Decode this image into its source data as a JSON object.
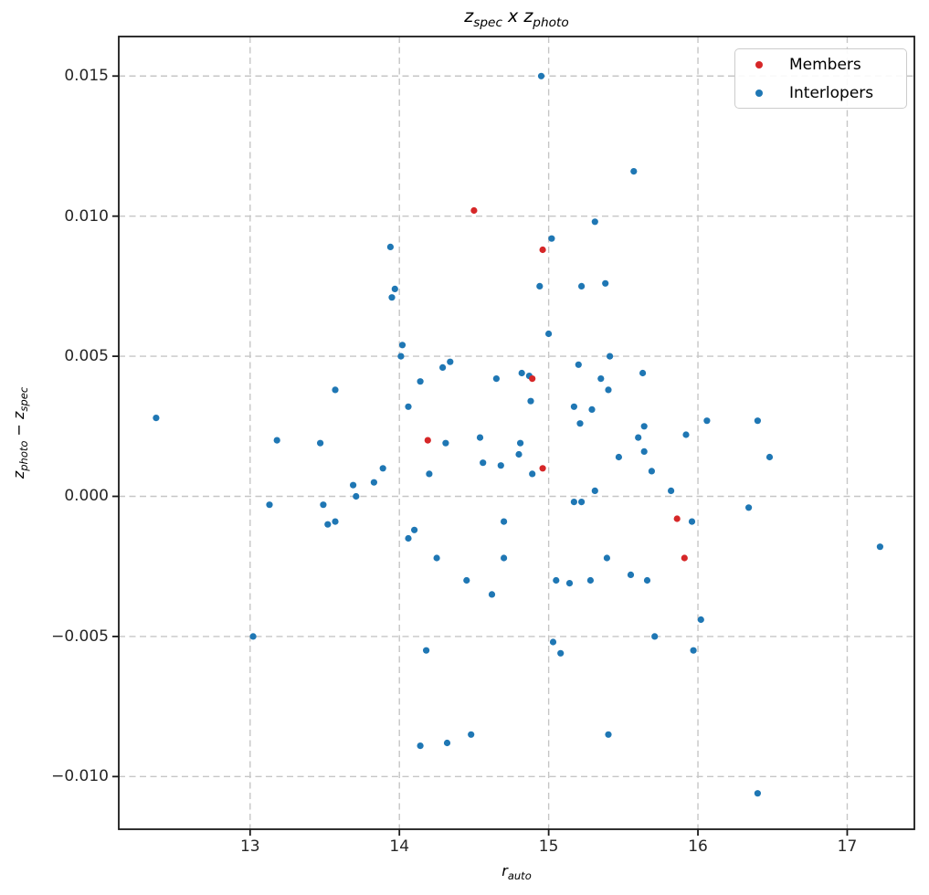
{
  "chart_data": {
    "type": "scatter",
    "title": "z_spec x z_photo",
    "xlabel": "r_auto",
    "ylabel": "z_photo − z_spec",
    "xlim": [
      12.12,
      17.45
    ],
    "ylim": [
      -0.01188,
      0.01641
    ],
    "grid": true,
    "grid_style": "dashed",
    "legend_position": "upper right",
    "xticks": {
      "values": [
        13,
        14,
        15,
        16,
        17
      ],
      "labels": [
        "13",
        "14",
        "15",
        "16",
        "17"
      ]
    },
    "yticks": {
      "values": [
        0.015,
        0.01,
        0.005,
        0.0,
        -0.005,
        -0.01
      ],
      "labels": [
        "0.015",
        "0.010",
        "0.005",
        "0.000",
        "−0.005",
        "−0.010"
      ]
    },
    "series": [
      {
        "name": "Members",
        "color": "#d62728",
        "points": [
          [
            14.5,
            0.0102
          ],
          [
            14.96,
            0.0088
          ],
          [
            14.89,
            0.0042
          ],
          [
            14.19,
            0.002
          ],
          [
            14.96,
            0.001
          ],
          [
            15.86,
            -0.0008
          ],
          [
            15.91,
            -0.0022
          ]
        ]
      },
      {
        "name": "Interlopers",
        "color": "#1f77b4",
        "points": [
          [
            12.37,
            0.0028
          ],
          [
            13.02,
            -0.005
          ],
          [
            13.13,
            -0.0003
          ],
          [
            13.18,
            0.002
          ],
          [
            13.47,
            0.0019
          ],
          [
            13.49,
            -0.0003
          ],
          [
            13.52,
            -0.001
          ],
          [
            13.57,
            -0.0009
          ],
          [
            13.57,
            0.0038
          ],
          [
            13.69,
            0.0004
          ],
          [
            13.71,
            0.0
          ],
          [
            13.83,
            0.0005
          ],
          [
            13.89,
            0.001
          ],
          [
            13.94,
            0.0089
          ],
          [
            13.95,
            0.0071
          ],
          [
            13.97,
            0.0074
          ],
          [
            14.02,
            0.0054
          ],
          [
            14.01,
            0.005
          ],
          [
            14.06,
            0.0032
          ],
          [
            14.06,
            -0.0015
          ],
          [
            14.1,
            -0.0012
          ],
          [
            14.14,
            0.0041
          ],
          [
            14.18,
            -0.0055
          ],
          [
            14.14,
            -0.0089
          ],
          [
            14.2,
            0.0008
          ],
          [
            14.25,
            -0.0022
          ],
          [
            14.29,
            0.0046
          ],
          [
            14.31,
            0.0019
          ],
          [
            14.32,
            -0.0088
          ],
          [
            14.34,
            0.0048
          ],
          [
            14.45,
            -0.003
          ],
          [
            14.48,
            -0.0085
          ],
          [
            14.54,
            0.0021
          ],
          [
            14.56,
            0.0012
          ],
          [
            14.62,
            -0.0035
          ],
          [
            14.65,
            0.0042
          ],
          [
            14.68,
            0.0011
          ],
          [
            14.7,
            -0.0009
          ],
          [
            14.7,
            -0.0022
          ],
          [
            14.8,
            0.0015
          ],
          [
            14.81,
            0.0019
          ],
          [
            14.82,
            0.0044
          ],
          [
            14.87,
            0.0043
          ],
          [
            14.88,
            0.0034
          ],
          [
            14.89,
            0.0008
          ],
          [
            14.94,
            0.0075
          ],
          [
            14.95,
            0.015
          ],
          [
            15.0,
            0.0058
          ],
          [
            15.02,
            0.0092
          ],
          [
            15.03,
            -0.0052
          ],
          [
            15.05,
            -0.003
          ],
          [
            15.08,
            -0.0056
          ],
          [
            15.14,
            -0.0031
          ],
          [
            15.17,
            0.0032
          ],
          [
            15.17,
            -0.0002
          ],
          [
            15.2,
            0.0047
          ],
          [
            15.22,
            0.0075
          ],
          [
            15.21,
            0.0026
          ],
          [
            15.22,
            -0.0002
          ],
          [
            15.28,
            -0.003
          ],
          [
            15.29,
            0.0031
          ],
          [
            15.31,
            0.0098
          ],
          [
            15.31,
            0.0002
          ],
          [
            15.35,
            0.0042
          ],
          [
            15.38,
            0.0076
          ],
          [
            15.39,
            -0.0022
          ],
          [
            15.4,
            0.0038
          ],
          [
            15.4,
            -0.0085
          ],
          [
            15.41,
            0.005
          ],
          [
            15.47,
            0.0014
          ],
          [
            15.55,
            -0.0028
          ],
          [
            15.57,
            0.0116
          ],
          [
            15.6,
            0.0021
          ],
          [
            15.63,
            0.0044
          ],
          [
            15.64,
            0.0025
          ],
          [
            15.64,
            0.0016
          ],
          [
            15.66,
            -0.003
          ],
          [
            15.69,
            0.0009
          ],
          [
            15.71,
            -0.005
          ],
          [
            15.82,
            0.0002
          ],
          [
            15.92,
            0.0022
          ],
          [
            15.96,
            -0.0009
          ],
          [
            15.97,
            -0.0055
          ],
          [
            16.02,
            -0.0044
          ],
          [
            16.06,
            0.0027
          ],
          [
            16.34,
            -0.0004
          ],
          [
            16.4,
            -0.0106
          ],
          [
            16.4,
            0.0027
          ],
          [
            16.48,
            0.0014
          ],
          [
            17.22,
            -0.0018
          ]
        ]
      }
    ]
  },
  "labels": {
    "title_segments": [
      {
        "t": "z"
      },
      {
        "t": "spec",
        "sub": true
      },
      {
        "t": " x "
      },
      {
        "t": "z"
      },
      {
        "t": "photo",
        "sub": true
      }
    ],
    "xlabel_segments": [
      {
        "t": "r"
      },
      {
        "t": "auto",
        "sub": true
      }
    ],
    "ylabel_segments": [
      {
        "t": "z"
      },
      {
        "t": "photo",
        "sub": true
      },
      {
        "t": " − "
      },
      {
        "t": "z"
      },
      {
        "t": "spec",
        "sub": true
      }
    ]
  },
  "legend": {
    "items": [
      {
        "label": "Members",
        "color": "#d62728"
      },
      {
        "label": "Interlopers",
        "color": "#1f77b4"
      }
    ]
  },
  "colors": {
    "background": "#ffffff",
    "grid": "#c6c6c6",
    "axis_border": "#1a1a1a",
    "tick": "#1a1a1a",
    "tick_label": "#262626"
  }
}
